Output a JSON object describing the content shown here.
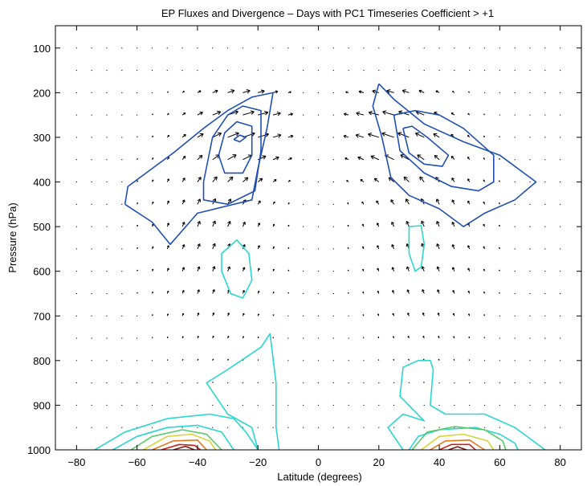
{
  "chart_data": {
    "type": "contour",
    "title": "EP Fluxes and Divergence – Days with PC1 Timeseries Coefficient > +1",
    "xlabel": "Latitude (degrees)",
    "ylabel": "Pressure (hPa)",
    "xlim": [
      -87,
      87
    ],
    "ylim": [
      50,
      1000
    ],
    "y_reversed": true,
    "xticks": [
      -80,
      -60,
      -40,
      -20,
      0,
      20,
      40,
      60,
      80
    ],
    "yticks": [
      100,
      200,
      300,
      400,
      500,
      600,
      700,
      800,
      900,
      1000
    ],
    "grid": false,
    "legend": "none",
    "colors": {
      "axis": "#000000",
      "arrow": "#000000",
      "blue": "#1f4fb4",
      "cyan": "#2ad6d0",
      "green": "#5cc86a",
      "yellow": "#d6d33a",
      "orange": "#e07a1e",
      "red": "#c8201b",
      "brown": "#7a1e12"
    },
    "vector_field": {
      "description": "EP flux arrows on a latitude-pressure grid",
      "lat_spacing": 5,
      "lat_range": [
        -80,
        80
      ],
      "pressure_levels": [
        100,
        150,
        200,
        250,
        300,
        350,
        400,
        450,
        500,
        550,
        600,
        650,
        700,
        750,
        800,
        850,
        900,
        950
      ]
    },
    "contours": [
      {
        "color": "blue",
        "points": [
          [
            -64,
            450
          ],
          [
            -63,
            410
          ],
          [
            -57,
            380
          ],
          [
            -48,
            335
          ],
          [
            -38,
            280
          ],
          [
            -30,
            240
          ],
          [
            -22,
            210
          ],
          [
            -15,
            200
          ],
          [
            -17,
            280
          ],
          [
            -20,
            370
          ],
          [
            -22,
            440
          ],
          [
            -40,
            470
          ],
          [
            -49,
            540
          ],
          [
            -55,
            490
          ],
          [
            -64,
            450
          ]
        ]
      },
      {
        "color": "blue",
        "points": [
          [
            -38,
            400
          ],
          [
            -35,
            300
          ],
          [
            -30,
            250
          ],
          [
            -25,
            230
          ],
          [
            -19,
            240
          ],
          [
            -19,
            330
          ],
          [
            -21,
            420
          ],
          [
            -30,
            450
          ],
          [
            -38,
            440
          ],
          [
            -38,
            400
          ]
        ]
      },
      {
        "color": "blue",
        "points": [
          [
            -33,
            340
          ],
          [
            -31,
            290
          ],
          [
            -27,
            265
          ],
          [
            -22,
            275
          ],
          [
            -22,
            340
          ],
          [
            -25,
            380
          ],
          [
            -31,
            380
          ],
          [
            -33,
            340
          ]
        ]
      },
      {
        "color": "blue",
        "points": [
          [
            -28,
            305
          ],
          [
            -26,
            295
          ],
          [
            -24,
            300
          ],
          [
            -26,
            310
          ],
          [
            -28,
            305
          ]
        ]
      },
      {
        "color": "blue",
        "points": [
          [
            20,
            180
          ],
          [
            25,
            215
          ],
          [
            35,
            270
          ],
          [
            48,
            310
          ],
          [
            60,
            340
          ],
          [
            72,
            400
          ],
          [
            65,
            440
          ],
          [
            55,
            470
          ],
          [
            48,
            500
          ],
          [
            40,
            460
          ],
          [
            30,
            430
          ],
          [
            24,
            390
          ],
          [
            21,
            300
          ],
          [
            18,
            230
          ],
          [
            20,
            180
          ]
        ]
      },
      {
        "color": "blue",
        "points": [
          [
            25,
            250
          ],
          [
            32,
            240
          ],
          [
            40,
            250
          ],
          [
            48,
            280
          ],
          [
            58,
            340
          ],
          [
            58,
            400
          ],
          [
            53,
            420
          ],
          [
            44,
            410
          ],
          [
            35,
            380
          ],
          [
            27,
            330
          ],
          [
            25,
            250
          ]
        ]
      },
      {
        "color": "blue",
        "points": [
          [
            28,
            280
          ],
          [
            31,
            275
          ],
          [
            36,
            300
          ],
          [
            43,
            340
          ],
          [
            41,
            365
          ],
          [
            35,
            360
          ],
          [
            30,
            335
          ],
          [
            28,
            280
          ]
        ]
      },
      {
        "color": "cyan",
        "points": [
          [
            -32,
            560
          ],
          [
            -27,
            530
          ],
          [
            -23,
            560
          ],
          [
            -22,
            620
          ],
          [
            -25,
            660
          ],
          [
            -29,
            650
          ],
          [
            -32,
            600
          ],
          [
            -32,
            560
          ]
        ]
      },
      {
        "color": "cyan",
        "points": [
          [
            30,
            500
          ],
          [
            34,
            498
          ],
          [
            35,
            540
          ],
          [
            34,
            590
          ],
          [
            32,
            600
          ],
          [
            30,
            560
          ],
          [
            30,
            500
          ]
        ]
      },
      {
        "color": "cyan",
        "points": [
          [
            -74,
            1000
          ],
          [
            -64,
            960
          ],
          [
            -50,
            930
          ],
          [
            -36,
            920
          ],
          [
            -28,
            930
          ],
          [
            -24,
            960
          ],
          [
            -20,
            1000
          ]
        ]
      },
      {
        "color": "cyan",
        "points": [
          [
            -68,
            1000
          ],
          [
            -60,
            970
          ],
          [
            -50,
            950
          ],
          [
            -40,
            945
          ],
          [
            -32,
            960
          ],
          [
            -28,
            1000
          ]
        ]
      },
      {
        "color": "cyan",
        "points": [
          [
            -20,
            1000
          ],
          [
            -22,
            950
          ],
          [
            -30,
            920
          ],
          [
            -37,
            850
          ],
          [
            -30,
            820
          ],
          [
            -19,
            770
          ],
          [
            -16,
            740
          ],
          [
            -14,
            850
          ],
          [
            -14,
            950
          ],
          [
            -13,
            1000
          ]
        ]
      },
      {
        "color": "green",
        "points": [
          [
            -62,
            1000
          ],
          [
            -55,
            970
          ],
          [
            -45,
            955
          ],
          [
            -37,
            965
          ],
          [
            -32,
            1000
          ]
        ]
      },
      {
        "color": "yellow",
        "points": [
          [
            -58,
            1000
          ],
          [
            -50,
            970
          ],
          [
            -42,
            965
          ],
          [
            -36,
            980
          ],
          [
            -34,
            1000
          ]
        ]
      },
      {
        "color": "orange",
        "points": [
          [
            -55,
            1000
          ],
          [
            -48,
            980
          ],
          [
            -40,
            978
          ],
          [
            -37,
            1000
          ]
        ]
      },
      {
        "color": "red",
        "points": [
          [
            -52,
            1000
          ],
          [
            -46,
            988
          ],
          [
            -41,
            990
          ],
          [
            -39,
            1000
          ]
        ]
      },
      {
        "color": "brown",
        "points": [
          [
            -48,
            1000
          ],
          [
            -44,
            992
          ],
          [
            -41,
            1000
          ]
        ]
      },
      {
        "color": "cyan",
        "points": [
          [
            28,
            1000
          ],
          [
            23,
            950
          ],
          [
            28,
            920
          ],
          [
            35,
            935
          ],
          [
            27,
            880
          ],
          [
            28,
            815
          ],
          [
            33,
            800
          ],
          [
            37,
            800
          ],
          [
            38,
            820
          ],
          [
            37,
            900
          ],
          [
            42,
            920
          ],
          [
            55,
            920
          ],
          [
            65,
            950
          ],
          [
            73,
            990
          ],
          [
            75,
            1000
          ]
        ]
      },
      {
        "color": "cyan",
        "points": [
          [
            30,
            1000
          ],
          [
            33,
            970
          ],
          [
            40,
            955
          ],
          [
            52,
            950
          ],
          [
            60,
            965
          ],
          [
            65,
            985
          ],
          [
            66,
            1000
          ]
        ]
      },
      {
        "color": "green",
        "points": [
          [
            31,
            1000
          ],
          [
            36,
            960
          ],
          [
            45,
            948
          ],
          [
            55,
            955
          ],
          [
            61,
            980
          ],
          [
            62,
            1000
          ]
        ]
      },
      {
        "color": "yellow",
        "points": [
          [
            34,
            1000
          ],
          [
            40,
            970
          ],
          [
            48,
            965
          ],
          [
            56,
            980
          ],
          [
            58,
            1000
          ]
        ]
      },
      {
        "color": "orange",
        "points": [
          [
            37,
            1000
          ],
          [
            42,
            980
          ],
          [
            50,
            978
          ],
          [
            55,
            1000
          ]
        ]
      },
      {
        "color": "red",
        "points": [
          [
            40,
            1000
          ],
          [
            44,
            988
          ],
          [
            50,
            988
          ],
          [
            52,
            1000
          ]
        ]
      },
      {
        "color": "brown",
        "points": [
          [
            43,
            1000
          ],
          [
            46,
            993
          ],
          [
            49,
            1000
          ]
        ]
      }
    ]
  }
}
